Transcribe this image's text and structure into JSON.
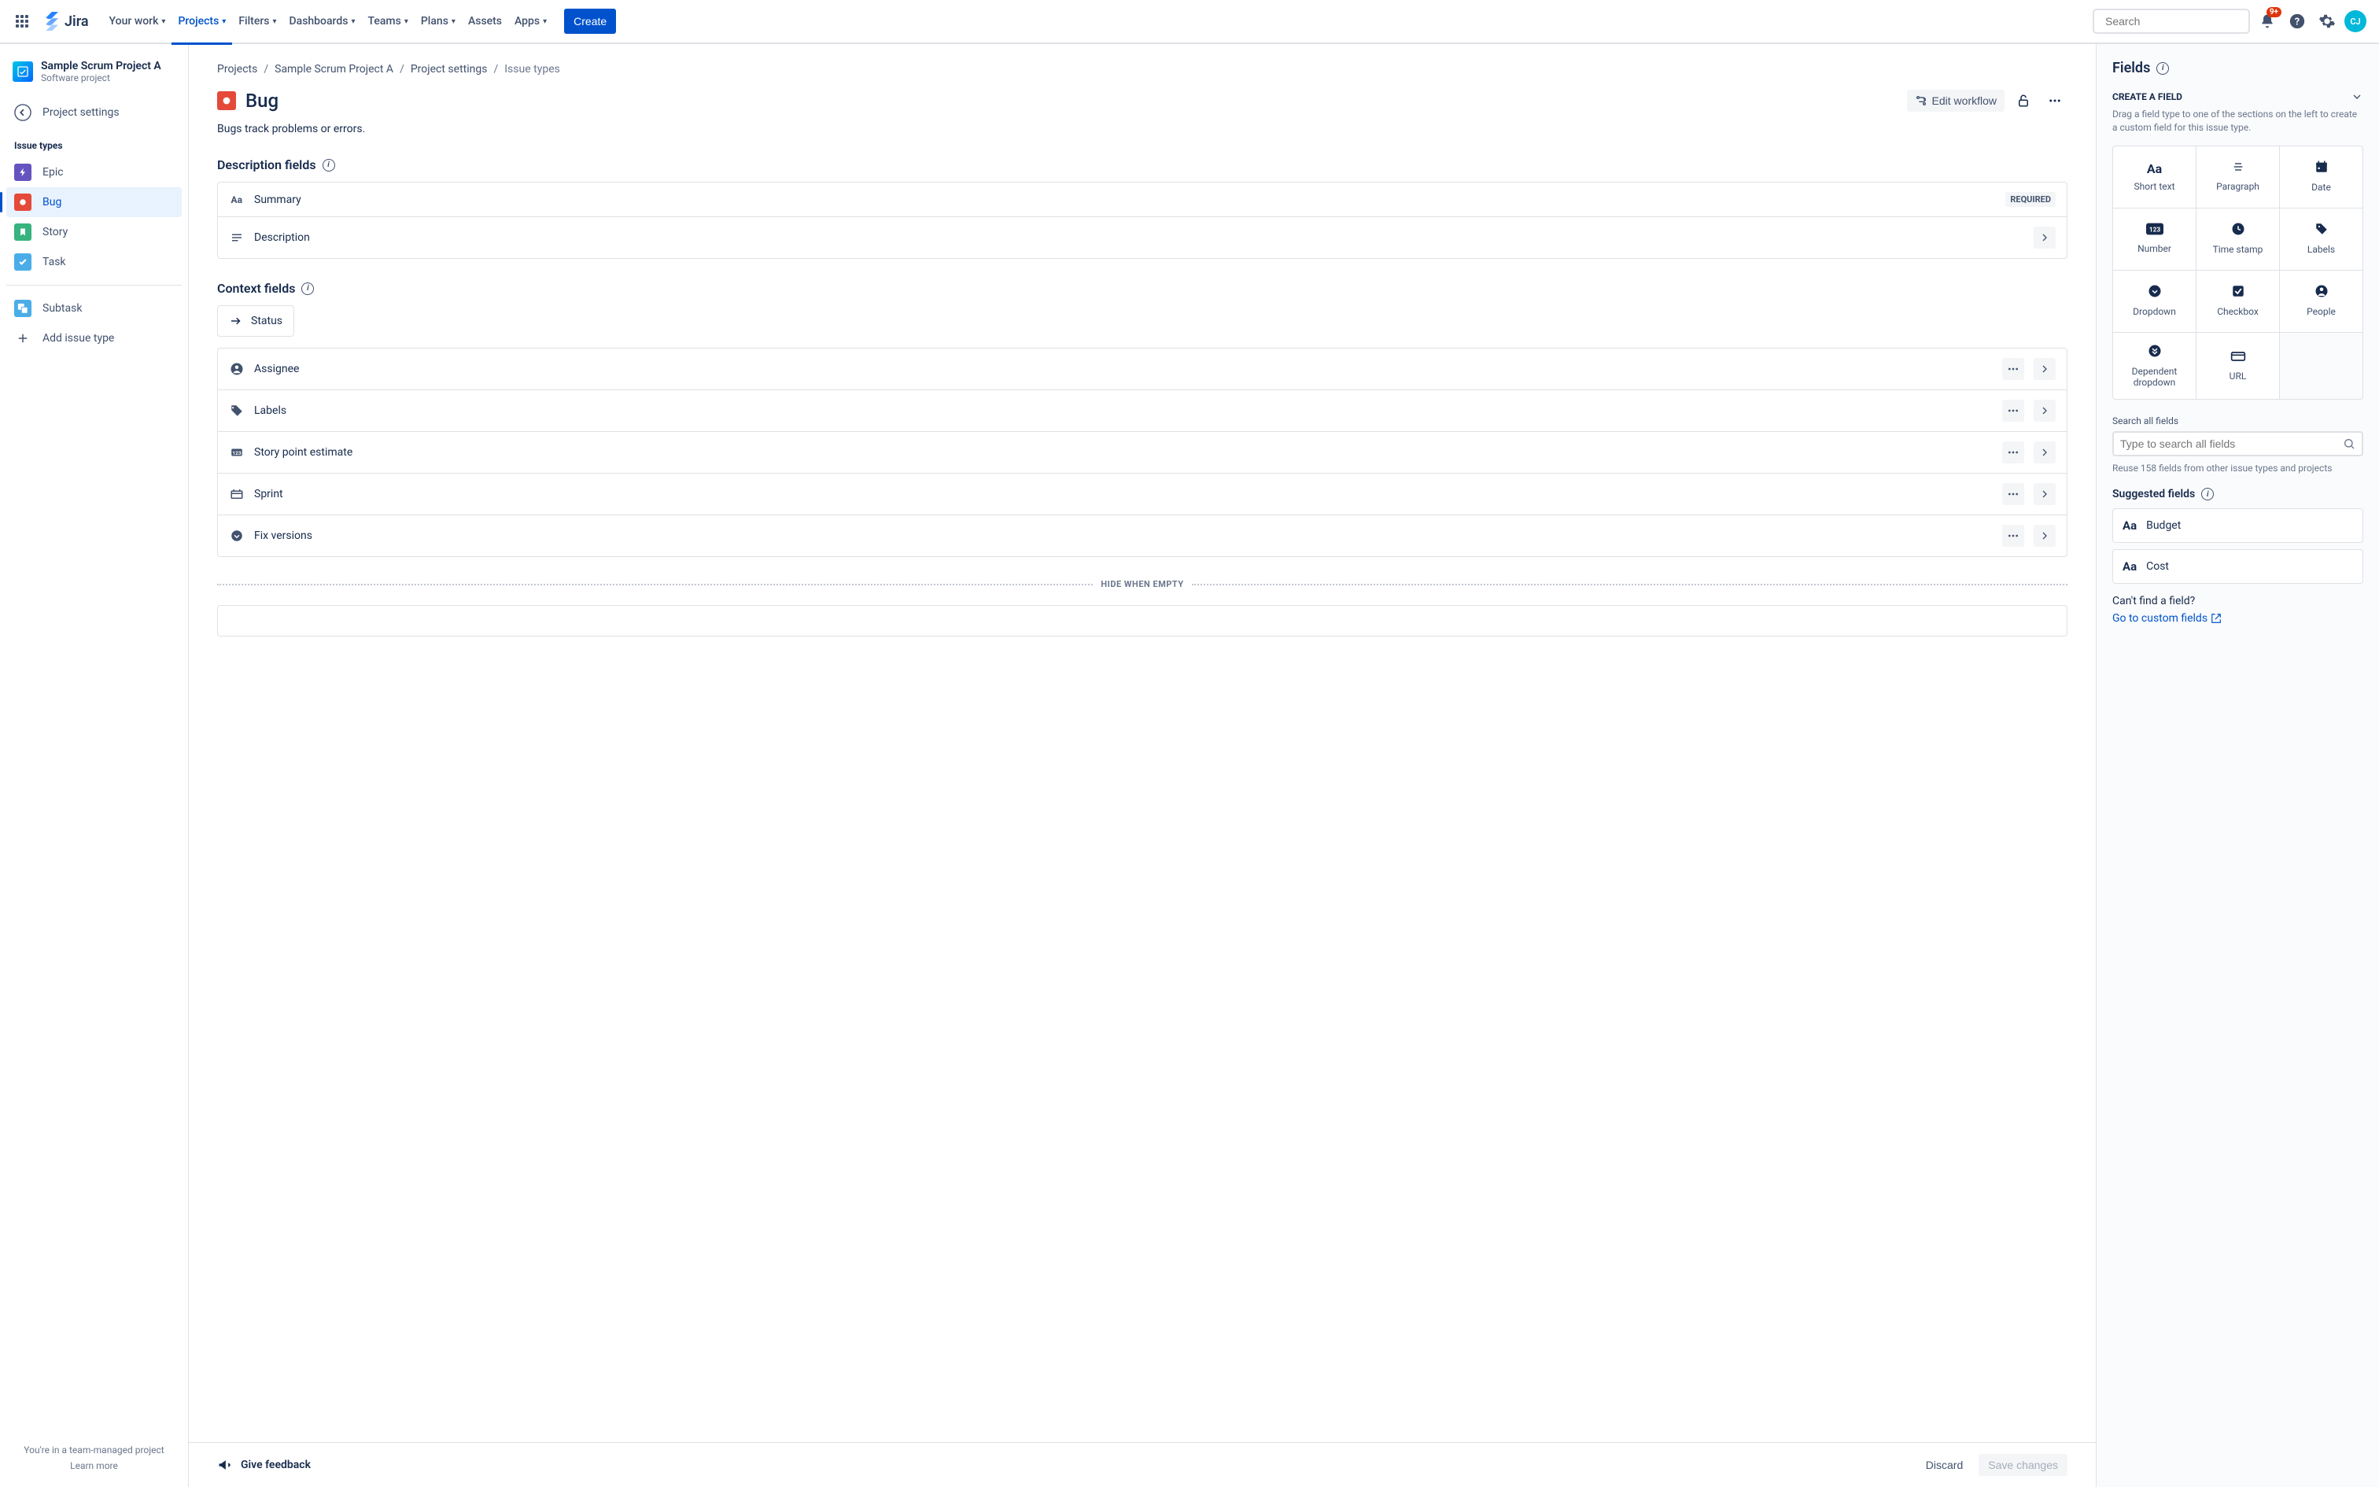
{
  "topnav": {
    "logo_text": "Jira",
    "items": [
      {
        "label": "Your work",
        "has_chev": true
      },
      {
        "label": "Projects",
        "has_chev": true,
        "active": true
      },
      {
        "label": "Filters",
        "has_chev": true
      },
      {
        "label": "Dashboards",
        "has_chev": true
      },
      {
        "label": "Teams",
        "has_chev": true
      },
      {
        "label": "Plans",
        "has_chev": true
      },
      {
        "label": "Assets",
        "has_chev": false
      },
      {
        "label": "Apps",
        "has_chev": true
      }
    ],
    "create_label": "Create",
    "search_placeholder": "Search",
    "notification_count": "9+",
    "avatar_initials": "CJ"
  },
  "sidebar": {
    "project_name": "Sample Scrum Project A",
    "project_type": "Software project",
    "back_label": "Project settings",
    "issue_types_heading": "Issue types",
    "issue_types": [
      {
        "label": "Epic",
        "color": "#6554C0",
        "icon": "bolt"
      },
      {
        "label": "Bug",
        "color": "#E5493A",
        "icon": "circle",
        "selected": true
      },
      {
        "label": "Story",
        "color": "#36B37E",
        "icon": "bookmark"
      },
      {
        "label": "Task",
        "color": "#4BADE8",
        "icon": "check"
      }
    ],
    "subtask_label": "Subtask",
    "subtask_color": "#4BADE8",
    "add_issue_type_label": "Add issue type",
    "footer_line1": "You're in a team-managed project",
    "footer_link": "Learn more"
  },
  "breadcrumb": [
    "Projects",
    "Sample Scrum Project A",
    "Project settings",
    "Issue types"
  ],
  "main": {
    "issue_icon_color": "#E5493A",
    "title": "Bug",
    "edit_workflow_label": "Edit workflow",
    "subtitle": "Bugs track problems or errors.",
    "description_section": "Description fields",
    "context_section": "Context fields",
    "status_label": "Status",
    "required_label": "REQUIRED",
    "hide_divider_label": "HIDE WHEN EMPTY",
    "description_fields": [
      {
        "label": "Summary",
        "icon": "text",
        "required": true
      },
      {
        "label": "Description",
        "icon": "paragraph",
        "expandable": true
      }
    ],
    "context_fields": [
      {
        "label": "Assignee",
        "icon": "person"
      },
      {
        "label": "Labels",
        "icon": "tag"
      },
      {
        "label": "Story point estimate",
        "icon": "number"
      },
      {
        "label": "Sprint",
        "icon": "sprint"
      },
      {
        "label": "Fix versions",
        "icon": "dropdown"
      }
    ],
    "feedback_label": "Give feedback",
    "discard_label": "Discard",
    "save_label": "Save changes"
  },
  "rightpanel": {
    "title": "Fields",
    "create_heading": "CREATE A FIELD",
    "create_desc": "Drag a field type to one of the sections on the left to create a custom field for this issue type.",
    "field_types": [
      {
        "label": "Short text",
        "icon": "text"
      },
      {
        "label": "Paragraph",
        "icon": "paragraph"
      },
      {
        "label": "Date",
        "icon": "calendar"
      },
      {
        "label": "Number",
        "icon": "number"
      },
      {
        "label": "Time stamp",
        "icon": "clock"
      },
      {
        "label": "Labels",
        "icon": "tag"
      },
      {
        "label": "Dropdown",
        "icon": "dropdown"
      },
      {
        "label": "Checkbox",
        "icon": "checkbox"
      },
      {
        "label": "People",
        "icon": "people"
      },
      {
        "label": "Dependent dropdown",
        "icon": "dependent"
      },
      {
        "label": "URL",
        "icon": "url"
      }
    ],
    "search_label": "Search all fields",
    "search_placeholder": "Type to search all fields",
    "reuse_text": "Reuse 158 fields from other issue types and projects",
    "suggested_heading": "Suggested fields",
    "suggested_fields": [
      {
        "label": "Budget",
        "icon": "text"
      },
      {
        "label": "Cost",
        "icon": "text"
      }
    ],
    "cant_find_text": "Can't find a field?",
    "custom_fields_link": "Go to custom fields"
  },
  "colors": {
    "primary": "#0052CC",
    "text": "#172B4D",
    "subtle": "#6B778C"
  }
}
